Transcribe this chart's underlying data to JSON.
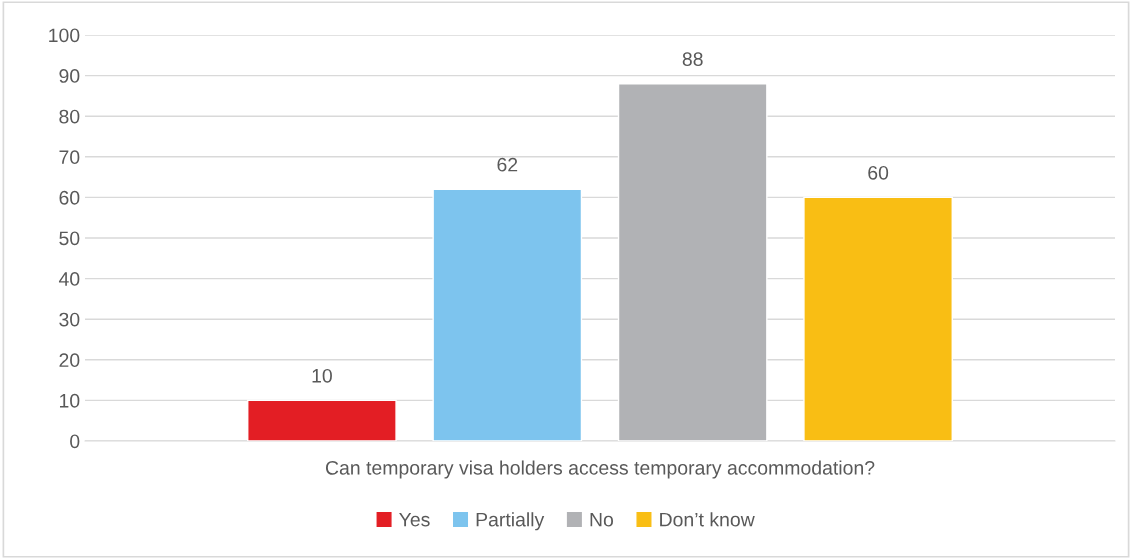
{
  "chart_data": {
    "type": "bar",
    "categories": [
      "Can temporary visa holders access temporary accommodation?"
    ],
    "series": [
      {
        "name": "Yes",
        "color": "#e31e24",
        "values": [
          10
        ]
      },
      {
        "name": "Partially",
        "color": "#7dc4ee",
        "values": [
          62
        ]
      },
      {
        "name": "No",
        "color": "#b1b2b5",
        "values": [
          88
        ]
      },
      {
        "name": "Don’t know",
        "color": "#f9be14",
        "values": [
          60
        ]
      }
    ],
    "ylim": [
      0,
      100
    ],
    "yticks": [
      0,
      10,
      20,
      30,
      40,
      50,
      60,
      70,
      80,
      90,
      100
    ],
    "grid": "y",
    "legend": "bottom",
    "data_labels": true
  }
}
